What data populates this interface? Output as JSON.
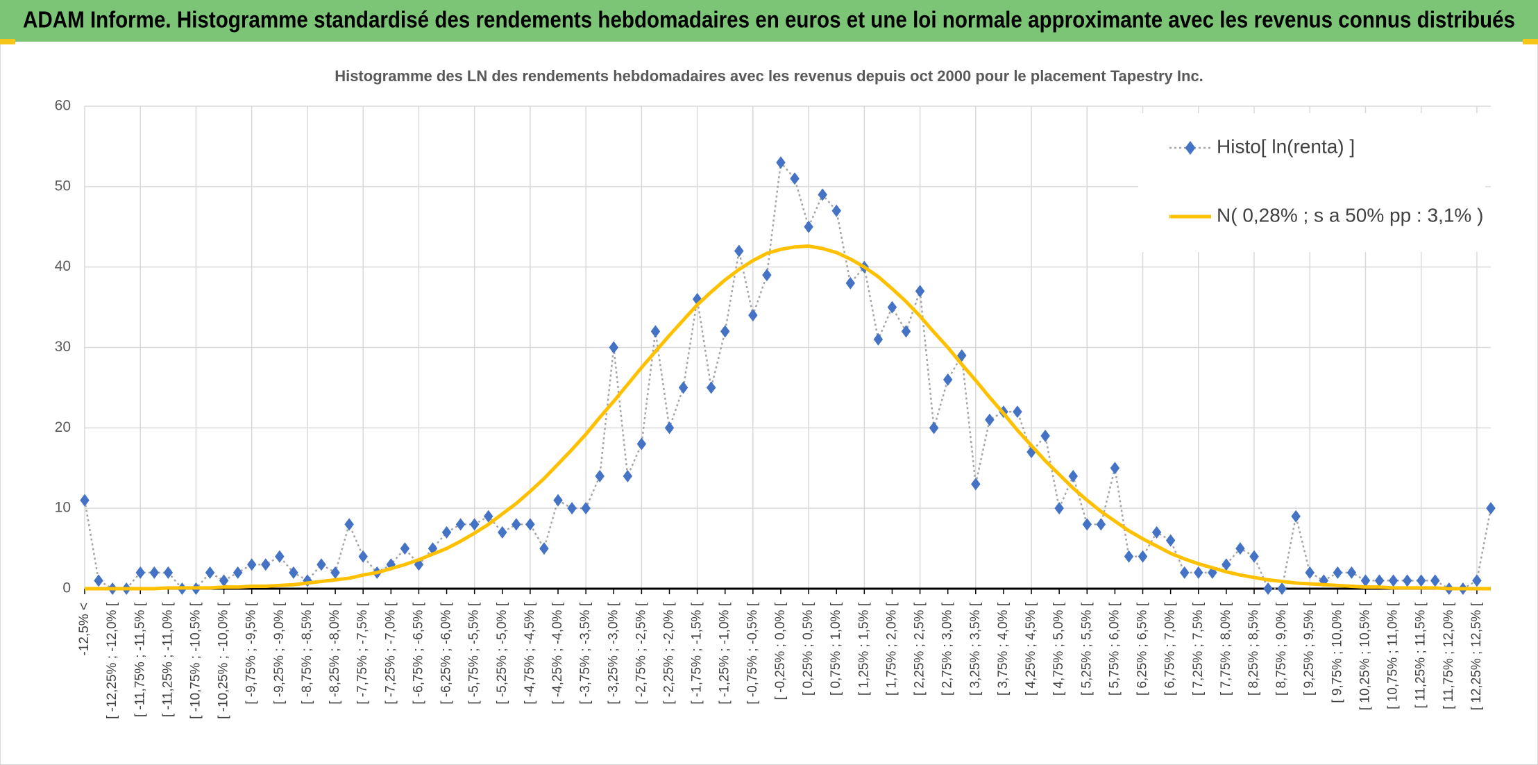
{
  "chart_data": {
    "type": "line",
    "banner": "ADAM Informe. Histogramme standardisé des rendements hebdomadaires en euros et une loi normale approximante avec les revenus connus distribués",
    "title": "Histogramme des LN des rendements hebdomadaires avec les revenus depuis oct 2000 pour le placement Tapestry Inc.",
    "categories": [
      "-12,5% <",
      null,
      "[ -12,25% ; -12,0% [",
      null,
      "[ -11,75% ; -11,5% [",
      null,
      "[ -11,25% ; -11,0% [",
      null,
      "[ -10,75% ; -10,5% [",
      null,
      "[ -10,25% ; -10,0% [",
      null,
      "[ -9,75% ; -9,5% [",
      null,
      "[ -9,25% ; -9,0% [",
      null,
      "[ -8,75% ; -8,5% [",
      null,
      "[ -8,25% ; -8,0% [",
      null,
      "[ -7,75% ; -7,5% [",
      null,
      "[ -7,25% ; -7,0% [",
      null,
      "[ -6,75% ; -6,5% [",
      null,
      "[ -6,25% ; -6,0% [",
      null,
      "[ -5,75% ; -5,5% [",
      null,
      "[ -5,25% ; -5,0% [",
      null,
      "[ -4,75% ; -4,5% [",
      null,
      "[ -4,25% ; -4,0% [",
      null,
      "[ -3,75% ; -3,5% [",
      null,
      "[ -3,25% ; -3,0% [",
      null,
      "[ -2,75% ; -2,5% [",
      null,
      "[ -2,25% ; -2,0% [",
      null,
      "[ -1,75% ; -1,5% [",
      null,
      "[ -1,25% ; -1,0% [",
      null,
      "[ -0,75% ; -0,5% [",
      null,
      "[ -0,25% ; 0,0% [",
      null,
      "[ 0,25% ; 0,5% [",
      null,
      "[ 0,75% ; 1,0% [",
      null,
      "[ 1,25% ; 1,5% [",
      null,
      "[ 1,75% ; 2,0% [",
      null,
      "[ 2,25% ; 2,5% [",
      null,
      "[ 2,75% ; 3,0% [",
      null,
      "[ 3,25% ; 3,5% [",
      null,
      "[ 3,75% ; 4,0% [",
      null,
      "[ 4,25% ; 4,5% [",
      null,
      "[ 4,75% ; 5,0% [",
      null,
      "[ 5,25% ; 5,5% [",
      null,
      "[ 5,75% ; 6,0% [",
      null,
      "[ 6,25% ; 6,5% [",
      null,
      "[ 6,75% ; 7,0% [",
      null,
      "[ 7,25% ; 7,5% [",
      null,
      "[ 7,75% ; 8,0% [",
      null,
      "[ 8,25% ; 8,5% [",
      null,
      "[ 8,75% ; 9,0% [",
      null,
      "[ 9,25% ; 9,5% [",
      null,
      "[ 9,75% ; 10,0% [",
      null,
      "[ 10,25% ; 10,5% [",
      null,
      "[ 10,75% ; 11,0% [",
      null,
      "[ 11,25% ; 11,5% [",
      null,
      "[ 11,75% ; 12,0% [",
      null,
      "[ 12,25% ; 12,5% [",
      null
    ],
    "series": [
      {
        "name": "Histo[ ln(renta) ]",
        "color": "#4472c4",
        "line_color": "#a5a5a5",
        "values": [
          11,
          1,
          0,
          0,
          2,
          2,
          2,
          0,
          0,
          2,
          1,
          2,
          3,
          3,
          4,
          2,
          1,
          3,
          2,
          8,
          4,
          2,
          3,
          5,
          3,
          5,
          7,
          8,
          8,
          9,
          7,
          8,
          8,
          5,
          11,
          10,
          10,
          14,
          30,
          14,
          18,
          32,
          20,
          25,
          36,
          25,
          32,
          42,
          34,
          39,
          53,
          51,
          45,
          49,
          47,
          38,
          40,
          31,
          35,
          32,
          37,
          20,
          26,
          29,
          13,
          21,
          22,
          22,
          17,
          19,
          10,
          14,
          8,
          8,
          15,
          4,
          4,
          7,
          6,
          2,
          2,
          2,
          3,
          5,
          4,
          0,
          0,
          9,
          2,
          1,
          2,
          2,
          1,
          1,
          1,
          1,
          1,
          1,
          0,
          0,
          1,
          10
        ]
      },
      {
        "name": "N( 0,28% ; s a 50% pp : 3,1% )",
        "color": "#ffc000",
        "values": [
          0,
          0,
          0,
          0,
          0,
          0,
          0.1,
          0.1,
          0.1,
          0.1,
          0.2,
          0.2,
          0.3,
          0.3,
          0.4,
          0.5,
          0.7,
          0.9,
          1.1,
          1.3,
          1.7,
          2,
          2.5,
          3,
          3.6,
          4.3,
          5,
          5.9,
          6.9,
          8,
          9.3,
          10.6,
          12.1,
          13.7,
          15.5,
          17.3,
          19.2,
          21.3,
          23.3,
          25.4,
          27.5,
          29.5,
          31.5,
          33.4,
          35.3,
          36.9,
          38.4,
          39.7,
          40.8,
          41.7,
          42.2,
          42.5,
          42.6,
          42.3,
          41.8,
          41,
          40,
          38.8,
          37.3,
          35.7,
          33.9,
          31.9,
          30,
          27.9,
          25.9,
          23.8,
          21.8,
          19.7,
          17.8,
          15.9,
          14.2,
          12.5,
          11,
          9.6,
          8.4,
          7.2,
          6.2,
          5.3,
          4.4,
          3.7,
          3.1,
          2.6,
          2.1,
          1.7,
          1.4,
          1.1,
          0.9,
          0.7,
          0.6,
          0.5,
          0.4,
          0.3,
          0.2,
          0.2,
          0.1,
          0.1,
          0.1,
          0.1,
          0,
          0,
          0,
          0
        ]
      }
    ],
    "ylim": [
      0,
      60
    ],
    "yticks": [
      0,
      10,
      20,
      30,
      40,
      50,
      60
    ],
    "grid": true,
    "legend": "upper right"
  }
}
